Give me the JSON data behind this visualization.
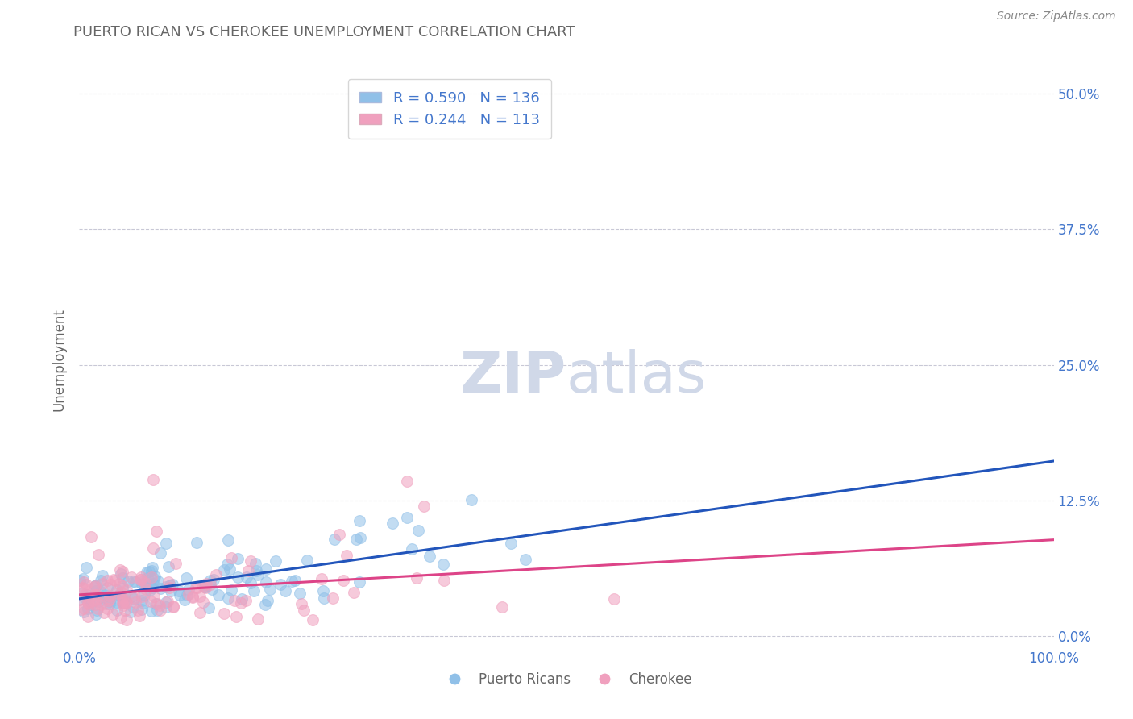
{
  "title": "PUERTO RICAN VS CHEROKEE UNEMPLOYMENT CORRELATION CHART",
  "source": "Source: ZipAtlas.com",
  "ylabel": "Unemployment",
  "ytick_labels": [
    "0.0%",
    "12.5%",
    "25.0%",
    "37.5%",
    "50.0%"
  ],
  "ytick_values": [
    0.0,
    0.125,
    0.25,
    0.375,
    0.5
  ],
  "blue_color": "#90c0e8",
  "pink_color": "#f0a0be",
  "line_blue": "#2255bb",
  "line_pink": "#dd4488",
  "background_color": "#ffffff",
  "grid_color": "#bbbbcc",
  "text_color": "#4477cc",
  "title_color": "#666666",
  "watermark_color": "#d0d8e8",
  "R_blue": 0.59,
  "N_blue": 136,
  "R_pink": 0.244,
  "N_pink": 113,
  "xlim": [
    0.0,
    1.0
  ],
  "ylim": [
    -0.01,
    0.52
  ],
  "seed": 7
}
